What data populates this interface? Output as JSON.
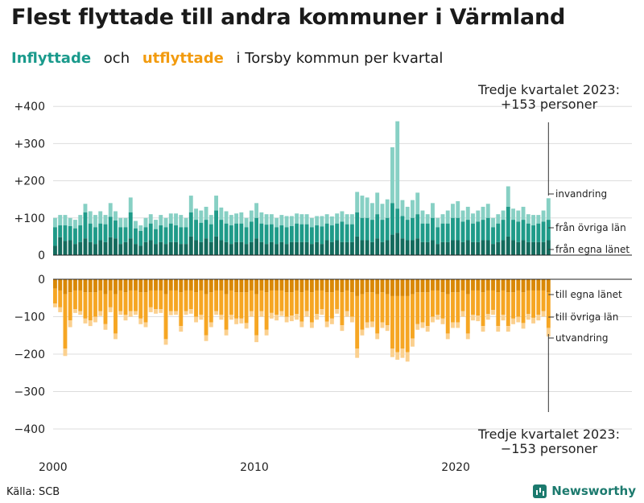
{
  "title": "Flest flyttade till andra kommuner i Värmland",
  "subtitle": {
    "in_label": "Inflyttade",
    "och": "och",
    "out_label": "utflyttade",
    "rest": "i Torsby kommun  per  kvartal"
  },
  "source": "Källa: SCB",
  "brand": "Newsworthy",
  "colors": {
    "in_dark": "#136b5d",
    "in_mid": "#1f9b89",
    "in_light": "#87d0c4",
    "out_dark": "#d98806",
    "out_mid": "#f6a623",
    "out_light": "#fbd08e"
  },
  "annotation_top": [
    "Tredje kvartalet 2023:",
    "+153 personer"
  ],
  "annotation_bottom": [
    "Tredje kvartalet 2023:",
    "−153 personer"
  ],
  "chart_data": {
    "type": "bar",
    "stacked": true,
    "x_start": "2000 Q1",
    "x_end": "2023 Q3",
    "xticks": [
      "2000",
      "2010",
      "2020"
    ],
    "yticks": [
      "+400",
      "+300",
      "+200",
      "+100",
      "0",
      "0",
      "−100",
      "−200",
      "−300",
      "−400"
    ],
    "ylim_in": [
      0,
      400
    ],
    "ylim_out": [
      -400,
      0
    ],
    "in_series_labels": [
      "invandring",
      "från övriga län",
      "från egna länet"
    ],
    "out_series_labels": [
      "till egna länet",
      "till övriga län",
      "utvandring"
    ],
    "in_totals": [
      100,
      108,
      108,
      100,
      95,
      108,
      138,
      118,
      108,
      118,
      108,
      140,
      118,
      100,
      100,
      155,
      92,
      80,
      100,
      110,
      95,
      108,
      100,
      112,
      112,
      108,
      100,
      160,
      125,
      120,
      130,
      108,
      160,
      128,
      118,
      108,
      112,
      115,
      100,
      120,
      140,
      115,
      110,
      110,
      100,
      108,
      105,
      105,
      112,
      110,
      110,
      100,
      105,
      105,
      110,
      104,
      112,
      118,
      110,
      110,
      170,
      160,
      155,
      140,
      168,
      138,
      150,
      290,
      360,
      148,
      130,
      148,
      168,
      120,
      110,
      140,
      100,
      110,
      120,
      138,
      145,
      120,
      130,
      112,
      120,
      130,
      138,
      100,
      110,
      120,
      185,
      125,
      120,
      130,
      110,
      108,
      108,
      120,
      153
    ],
    "in_egna": [
      25,
      48,
      38,
      40,
      30,
      35,
      45,
      35,
      30,
      40,
      35,
      48,
      45,
      30,
      35,
      45,
      30,
      25,
      35,
      40,
      30,
      35,
      30,
      35,
      35,
      30,
      30,
      50,
      40,
      35,
      45,
      35,
      50,
      40,
      35,
      30,
      35,
      35,
      30,
      35,
      45,
      35,
      30,
      35,
      30,
      35,
      30,
      35,
      35,
      35,
      35,
      30,
      35,
      30,
      40,
      35,
      40,
      35,
      35,
      35,
      50,
      40,
      40,
      35,
      45,
      35,
      40,
      55,
      60,
      45,
      40,
      40,
      45,
      35,
      35,
      40,
      30,
      35,
      35,
      40,
      40,
      35,
      40,
      35,
      35,
      40,
      40,
      30,
      35,
      40,
      50,
      40,
      35,
      40,
      35,
      35,
      35,
      35,
      40
    ],
    "in_ovriga": [
      50,
      32,
      42,
      38,
      42,
      45,
      70,
      50,
      45,
      45,
      48,
      55,
      48,
      45,
      40,
      70,
      42,
      40,
      40,
      45,
      40,
      45,
      45,
      50,
      45,
      45,
      45,
      65,
      55,
      52,
      50,
      48,
      70,
      55,
      50,
      50,
      50,
      50,
      45,
      55,
      55,
      50,
      52,
      48,
      45,
      45,
      45,
      43,
      50,
      48,
      48,
      45,
      45,
      47,
      45,
      45,
      45,
      55,
      48,
      48,
      65,
      60,
      60,
      60,
      65,
      60,
      60,
      85,
      65,
      60,
      55,
      60,
      65,
      50,
      50,
      60,
      45,
      50,
      50,
      60,
      60,
      55,
      55,
      50,
      55,
      55,
      60,
      45,
      50,
      55,
      80,
      55,
      55,
      55,
      50,
      45,
      50,
      55,
      55
    ],
    "out_totals": [
      -75,
      -88,
      -205,
      -128,
      -90,
      -95,
      -118,
      -125,
      -115,
      -98,
      -135,
      -88,
      -160,
      -95,
      -110,
      -100,
      -95,
      -120,
      -128,
      -88,
      -92,
      -90,
      -175,
      -96,
      -95,
      -140,
      -95,
      -92,
      -115,
      -108,
      -165,
      -128,
      -95,
      -108,
      -150,
      -108,
      -120,
      -118,
      -132,
      -100,
      -168,
      -100,
      -150,
      -105,
      -110,
      -98,
      -115,
      -112,
      -108,
      -128,
      -100,
      -130,
      -108,
      -95,
      -128,
      -120,
      -92,
      -138,
      -100,
      -115,
      -210,
      -150,
      -130,
      -128,
      -160,
      -130,
      -138,
      -208,
      -215,
      -210,
      -220,
      -180,
      -135,
      -130,
      -140,
      -115,
      -108,
      -120,
      -160,
      -130,
      -130,
      -100,
      -160,
      -110,
      -112,
      -140,
      -108,
      -95,
      -140,
      -110,
      -140,
      -120,
      -115,
      -132,
      -108,
      -118,
      -110,
      -100,
      -153
    ],
    "out_egna": [
      -25,
      -30,
      -40,
      -35,
      -30,
      -30,
      -35,
      -35,
      -35,
      -30,
      -40,
      -30,
      -40,
      -30,
      -35,
      -30,
      -30,
      -35,
      -35,
      -30,
      -30,
      -30,
      -40,
      -30,
      -30,
      -35,
      -30,
      -30,
      -35,
      -30,
      -40,
      -35,
      -30,
      -30,
      -40,
      -30,
      -35,
      -35,
      -35,
      -30,
      -40,
      -30,
      -35,
      -30,
      -30,
      -30,
      -35,
      -35,
      -30,
      -35,
      -30,
      -35,
      -30,
      -30,
      -35,
      -35,
      -30,
      -35,
      -30,
      -35,
      -45,
      -40,
      -35,
      -35,
      -40,
      -35,
      -40,
      -45,
      -45,
      -45,
      -45,
      -40,
      -35,
      -35,
      -35,
      -30,
      -30,
      -35,
      -40,
      -35,
      -35,
      -30,
      -40,
      -30,
      -30,
      -35,
      -30,
      -30,
      -35,
      -30,
      -35,
      -35,
      -30,
      -35,
      -30,
      -30,
      -30,
      -30,
      -35
    ],
    "out_ovriga": [
      -40,
      -45,
      -145,
      -75,
      -50,
      -55,
      -70,
      -75,
      -65,
      -55,
      -80,
      -45,
      -105,
      -55,
      -60,
      -55,
      -55,
      -70,
      -80,
      -45,
      -50,
      -50,
      -120,
      -55,
      -55,
      -90,
      -55,
      -50,
      -65,
      -65,
      -110,
      -80,
      -55,
      -65,
      -95,
      -65,
      -70,
      -70,
      -82,
      -55,
      -110,
      -55,
      -100,
      -60,
      -65,
      -55,
      -65,
      -62,
      -63,
      -78,
      -55,
      -80,
      -63,
      -50,
      -78,
      -70,
      -50,
      -88,
      -55,
      -65,
      -140,
      -95,
      -80,
      -78,
      -105,
      -80,
      -83,
      -140,
      -150,
      -140,
      -150,
      -118,
      -85,
      -80,
      -90,
      -70,
      -65,
      -70,
      -105,
      -80,
      -80,
      -55,
      -105,
      -65,
      -67,
      -90,
      -63,
      -52,
      -90,
      -65,
      -90,
      -70,
      -70,
      -82,
      -63,
      -73,
      -65,
      -55,
      -95
    ]
  }
}
